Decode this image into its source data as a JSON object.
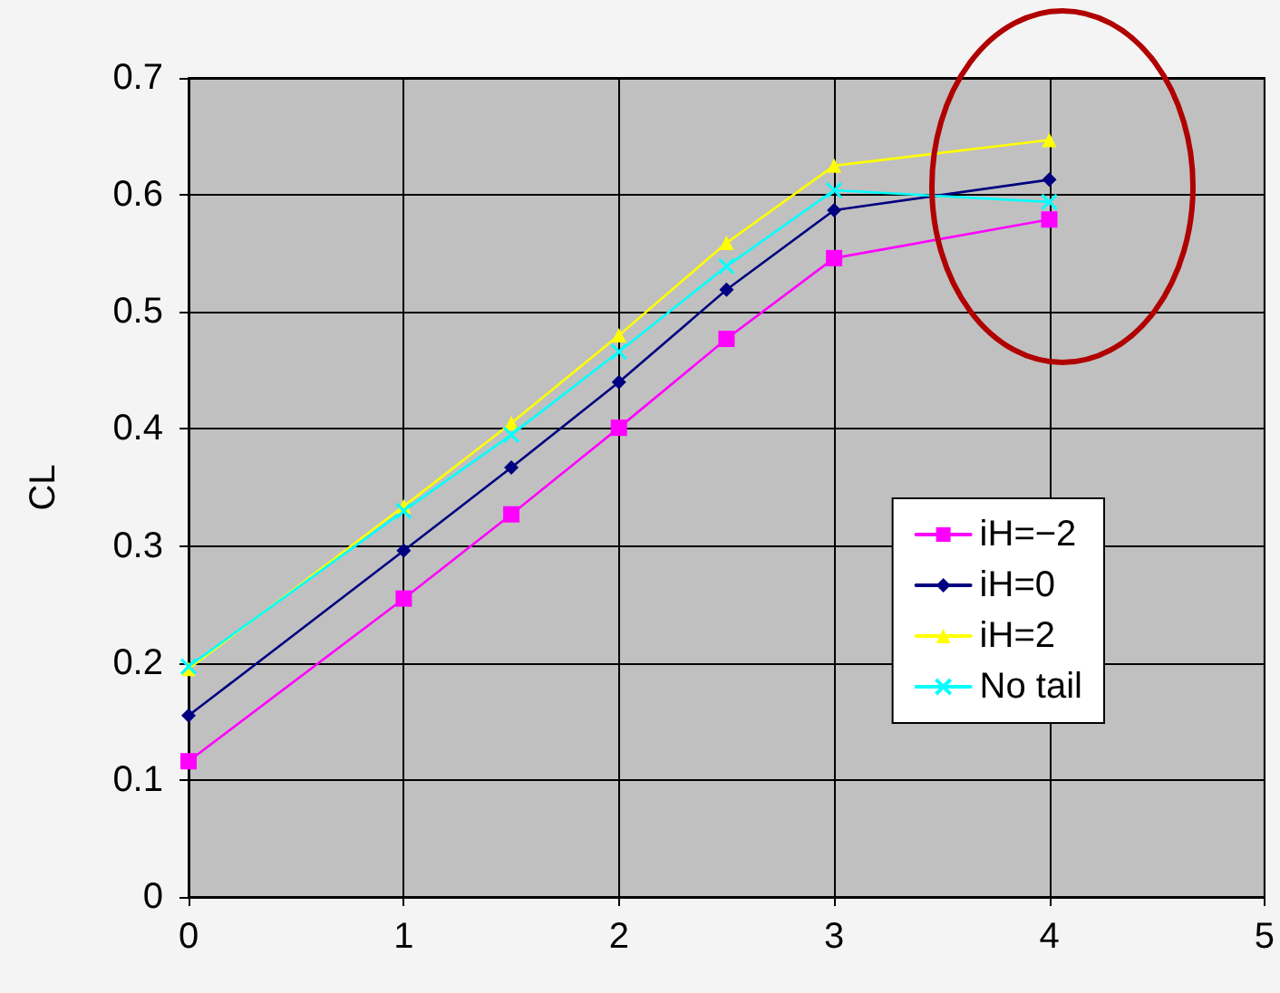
{
  "chart_data": {
    "type": "line",
    "ylabel": "CL",
    "x": [
      0,
      1,
      1.5,
      2,
      2.5,
      3,
      4
    ],
    "series": [
      {
        "name": "iH=−2",
        "color": "#ff00ff",
        "marker": "square",
        "values": [
          0.116,
          0.255,
          0.327,
          0.401,
          0.477,
          0.546,
          0.579
        ]
      },
      {
        "name": "iH=0",
        "color": "#000080",
        "marker": "diamond",
        "values": [
          0.155,
          0.296,
          0.367,
          0.44,
          0.519,
          0.587,
          0.613
        ]
      },
      {
        "name": "iH=2",
        "color": "#ffff00",
        "marker": "triangle",
        "values": [
          0.195,
          0.334,
          0.405,
          0.48,
          0.559,
          0.625,
          0.647
        ]
      },
      {
        "name": "No tail",
        "color": "#00ffff",
        "marker": "cross",
        "values": [
          0.197,
          0.33,
          0.395,
          0.466,
          0.539,
          0.604,
          0.594
        ]
      }
    ],
    "xlim": [
      0,
      5
    ],
    "xticks": [
      0,
      1,
      2,
      3,
      4,
      5
    ],
    "ylim": [
      0,
      0.7
    ],
    "yticks": [
      0,
      0.1,
      0.2,
      0.3,
      0.4,
      0.5,
      0.6,
      0.7
    ],
    "grid": true,
    "legend": "right",
    "line_style": "solid"
  }
}
